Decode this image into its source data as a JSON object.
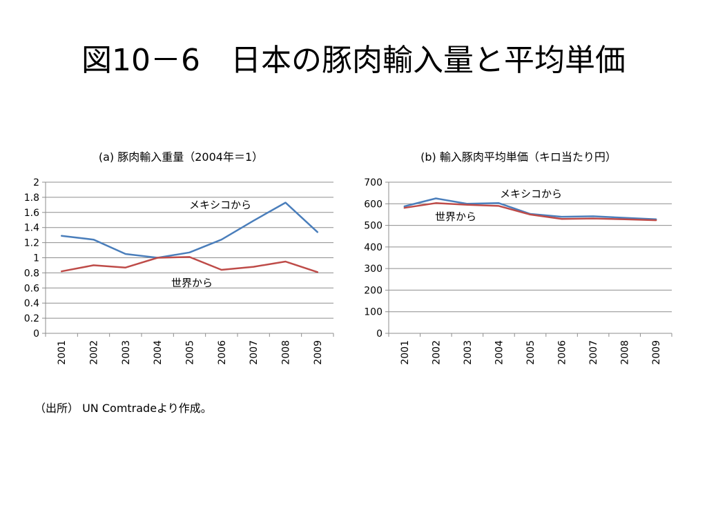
{
  "slide": {
    "title": "図10－6　日本の豚肉輸入量と平均単価",
    "source": "（出所） UN Comtradeより作成。"
  },
  "chart_data": [
    {
      "type": "line",
      "title": "(a)  豚肉輸入重量（2004年＝1）",
      "xlabel": "",
      "ylabel": "",
      "categories": [
        "2001",
        "2002",
        "2003",
        "2004",
        "2005",
        "2006",
        "2007",
        "2008",
        "2009"
      ],
      "ylim": [
        0,
        2
      ],
      "yticks": [
        "0",
        "0.2",
        "0.4",
        "0.6",
        "0.8",
        "1",
        "1.2",
        "1.4",
        "1.6",
        "1.8",
        "2"
      ],
      "grid": true,
      "series": [
        {
          "name": "メキシコから",
          "color": "#4a7ebb",
          "values": [
            1.29,
            1.24,
            1.05,
            1.0,
            1.07,
            1.24,
            1.49,
            1.73,
            1.34
          ]
        },
        {
          "name": "世界から",
          "color": "#be4b48",
          "values": [
            0.82,
            0.9,
            0.87,
            1.0,
            1.01,
            0.84,
            0.88,
            0.95,
            0.81
          ]
        }
      ]
    },
    {
      "type": "line",
      "title": "(b)  輸入豚肉平均単価（キロ当たり円）",
      "xlabel": "",
      "ylabel": "",
      "categories": [
        "2001",
        "2002",
        "2003",
        "2004",
        "2005",
        "2006",
        "2007",
        "2008",
        "2009"
      ],
      "ylim": [
        0,
        700
      ],
      "yticks": [
        "0",
        "100",
        "200",
        "300",
        "400",
        "500",
        "600",
        "700"
      ],
      "grid": true,
      "series": [
        {
          "name": "メキシコから",
          "color": "#4a7ebb",
          "values": [
            588,
            625,
            600,
            603,
            553,
            540,
            542,
            535,
            528
          ]
        },
        {
          "name": "世界から",
          "color": "#be4b48",
          "values": [
            581,
            603,
            595,
            590,
            550,
            530,
            532,
            528,
            524
          ]
        }
      ]
    }
  ]
}
